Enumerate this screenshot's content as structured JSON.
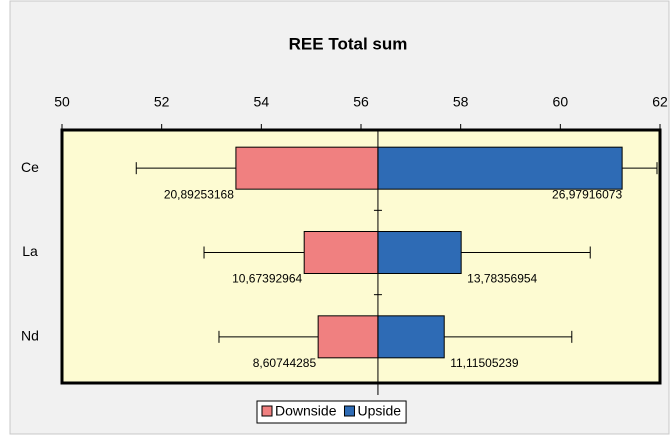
{
  "chart_data": {
    "type": "tornado",
    "title": "REE Total sum",
    "categories": [
      "Ce",
      "La",
      "Nd"
    ],
    "base": 56.34,
    "xlim": [
      50,
      62
    ],
    "xticks": [
      50,
      52,
      54,
      56,
      58,
      60,
      62
    ],
    "legend": "bottom",
    "series": [
      {
        "name": "Downside",
        "color": "#f08080",
        "values": [
          53.49,
          54.86,
          55.14
        ],
        "error_ends": [
          51.49,
          52.85,
          53.15
        ],
        "labels": [
          "20,89253168",
          "10,67392964",
          "8,60744285"
        ]
      },
      {
        "name": "Upside",
        "color": "#2e6bb5",
        "values": [
          61.24,
          58.01,
          57.67
        ],
        "error_ends": [
          61.94,
          60.6,
          60.23
        ],
        "labels": [
          "26,97916073",
          "13,78356954",
          "11,11505239"
        ]
      }
    ]
  }
}
